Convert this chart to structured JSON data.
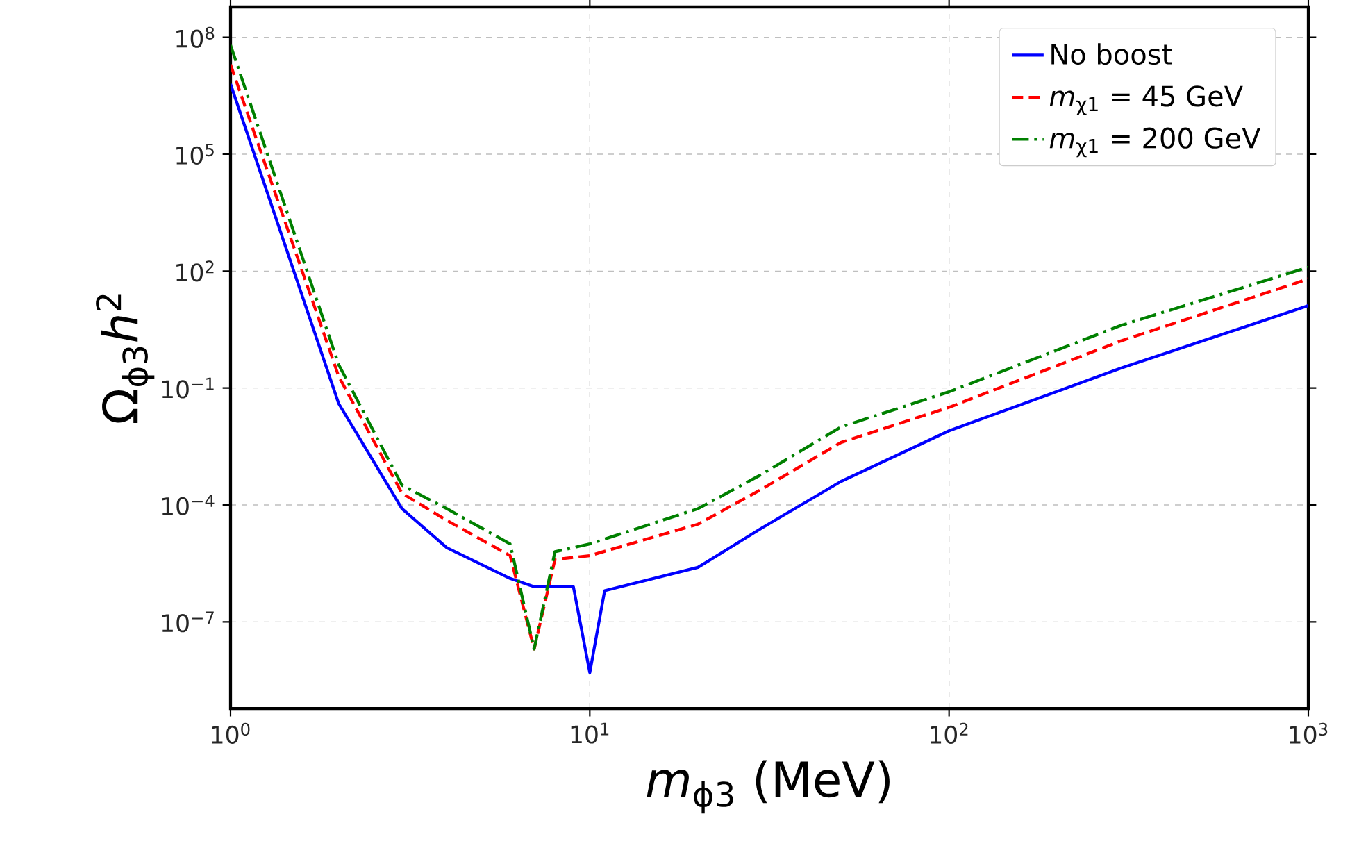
{
  "chart_data": {
    "type": "line",
    "xlabel": "*m*$_{ϕ3}$ (MeV)",
    "ylabel": "Ω$_{ϕ3}$*h*$^{2}$",
    "log": "xy",
    "grid": true,
    "legend": "top right",
    "xlim": [
      1,
      1000
    ],
    "ylim": [
      6e-10,
      600000000.0
    ],
    "xticks": [
      {
        "value": 1,
        "label": "10$^{0}$"
      },
      {
        "value": 10,
        "label": "10$^{1}$"
      },
      {
        "value": 100,
        "label": "10$^{2}$"
      },
      {
        "value": 1000,
        "label": "10$^{3}$"
      }
    ],
    "yticks": [
      {
        "value": 1e-07,
        "label": "10$^{−7}$"
      },
      {
        "value": 0.0001,
        "label": "10$^{−4}$"
      },
      {
        "value": 0.1,
        "label": "10$^{−1}$"
      },
      {
        "value": 100,
        "label": "10$^{2}$"
      },
      {
        "value": 100000.0,
        "label": "10$^{5}$"
      },
      {
        "value": 100000000.0,
        "label": "10$^{8}$"
      }
    ],
    "series": [
      {
        "name": "No boost",
        "color": "#0000ff",
        "line_style": "solid",
        "x": [
          1,
          2,
          3,
          4,
          6,
          7,
          9,
          10,
          11,
          20,
          30,
          50,
          100,
          300,
          1000
        ],
        "values": [
          6300000.0,
          0.04,
          8e-05,
          8e-06,
          1.3e-06,
          8e-07,
          8e-07,
          5e-09,
          6.3e-07,
          2.5e-06,
          2.5e-05,
          0.0004,
          0.008,
          0.32,
          13
        ]
      },
      {
        "name": "*m*$_{χ1}$ = 45 GeV",
        "color": "#ff0000",
        "line_style": "dashed",
        "x": [
          1,
          2,
          3,
          4,
          6,
          7,
          8,
          10,
          20,
          30,
          50,
          100,
          300,
          1000
        ],
        "values": [
          20000000.0,
          0.2,
          0.0002,
          4e-05,
          5e-06,
          2e-08,
          4e-06,
          5e-06,
          3.2e-05,
          0.00025,
          0.004,
          0.032,
          1.6,
          63
        ]
      },
      {
        "name": "*m*$_{χ1}$ = 200 GeV",
        "color": "#008000",
        "line_style": "dashdot",
        "x": [
          1,
          2,
          3,
          4,
          6,
          7,
          8,
          10,
          20,
          30,
          50,
          100,
          300,
          1000
        ],
        "values": [
          63000000.0,
          0.4,
          0.00032,
          8e-05,
          1e-05,
          2e-08,
          6.3e-06,
          1e-05,
          8e-05,
          0.0006,
          0.01,
          0.08,
          4,
          126
        ]
      }
    ]
  }
}
